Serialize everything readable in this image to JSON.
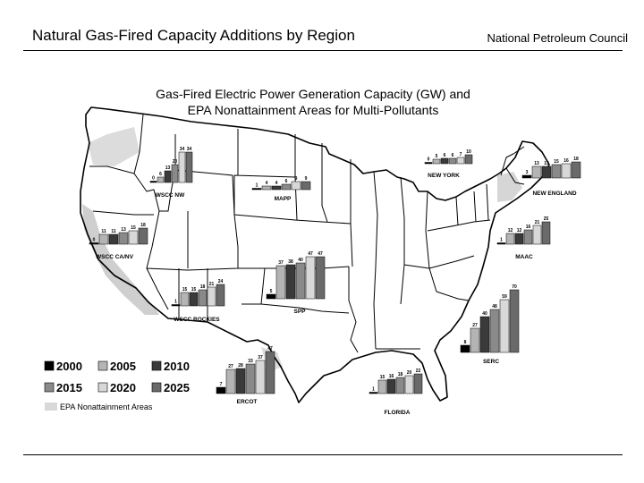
{
  "header": {
    "title": "Natural Gas-Fired Capacity Additions by Region",
    "org": "National Petroleum Council"
  },
  "chart_data": {
    "type": "bar",
    "title_line1": "Gas-Fired Electric Power Generation Capacity (GW) and",
    "title_line2": "EPA Nonattainment Areas for Multi-Pollutants",
    "years": [
      "2000",
      "2005",
      "2010",
      "2015",
      "2020",
      "2025"
    ],
    "series_colors": [
      "#000000",
      "#b4b4b4",
      "#3a3a3a",
      "#8a8a8a",
      "#d8d8d8",
      "#6a6a6a"
    ],
    "legend_extra": "EPA Nonattainment Areas",
    "regions": [
      {
        "name": "WSCC NW",
        "values": [
          0,
          6,
          13,
          20,
          34,
          34
        ]
      },
      {
        "name": "MAPP",
        "values": [
          1,
          4,
          4,
          6,
          9,
          9
        ]
      },
      {
        "name": "NEW YORK",
        "values": [
          0,
          5,
          6,
          6,
          7,
          10
        ]
      },
      {
        "name": "NEW ENGLAND",
        "values": [
          3,
          13,
          13,
          15,
          16,
          18
        ]
      },
      {
        "name": "WSCC CA/NV",
        "values": [
          0,
          11,
          11,
          13,
          15,
          18
        ]
      },
      {
        "name": "SPP",
        "values": [
          5,
          37,
          38,
          40,
          47,
          47
        ]
      },
      {
        "name": "MAAC",
        "values": [
          1,
          12,
          12,
          16,
          21,
          25
        ]
      },
      {
        "name": "WSCC ROCKIES",
        "values": [
          1,
          15,
          15,
          18,
          21,
          24
        ]
      },
      {
        "name": "SERC",
        "values": [
          8,
          27,
          40,
          48,
          59,
          70
        ]
      },
      {
        "name": "ERCOT",
        "values": [
          7,
          27,
          28,
          33,
          37,
          47
        ]
      },
      {
        "name": "FLORIDA",
        "values": [
          1,
          15,
          16,
          18,
          20,
          22
        ]
      }
    ]
  }
}
